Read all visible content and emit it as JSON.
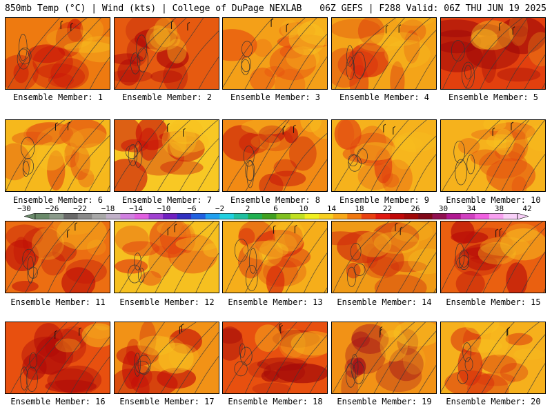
{
  "header": {
    "left": "850mb Temp (°C) | Wind (kts) | College of DuPage NEXLAB",
    "right": "06Z GEFS | F288 Valid: 06Z THU JUN 19 2025"
  },
  "panels": [
    {
      "label": "Ensemble Member: 1",
      "base": "#ee7a10",
      "hot": "#c81208"
    },
    {
      "label": "Ensemble Member: 2",
      "base": "#e65a10",
      "hot": "#b00808"
    },
    {
      "label": "Ensemble Member: 3",
      "base": "#f4a018",
      "hot": "#e64a0e"
    },
    {
      "label": "Ensemble Member: 4",
      "base": "#f4a418",
      "hot": "#d8280c"
    },
    {
      "label": "Ensemble Member: 5",
      "base": "#e2400e",
      "hot": "#a00808"
    },
    {
      "label": "Ensemble Member: 6",
      "base": "#f6b81c",
      "hot": "#e0400e"
    },
    {
      "label": "Ensemble Member: 7",
      "base": "#f8c824",
      "hot": "#c81208"
    },
    {
      "label": "Ensemble Member: 8",
      "base": "#f28a14",
      "hot": "#c41008"
    },
    {
      "label": "Ensemble Member: 9",
      "base": "#f6b21c",
      "hot": "#e03a0e"
    },
    {
      "label": "Ensemble Member: 10",
      "base": "#f6b21c",
      "hot": "#e24a0e"
    },
    {
      "label": "Ensemble Member: 11",
      "base": "#ec6e12",
      "hot": "#c01008"
    },
    {
      "label": "Ensemble Member: 12",
      "base": "#f6c020",
      "hot": "#e0380e"
    },
    {
      "label": "Ensemble Member: 13",
      "base": "#f6ae1a",
      "hot": "#d8280c"
    },
    {
      "label": "Ensemble Member: 14",
      "base": "#f09a16",
      "hot": "#d02a0c"
    },
    {
      "label": "Ensemble Member: 15",
      "base": "#ea6010",
      "hot": "#b80c08"
    },
    {
      "label": "Ensemble Member: 16",
      "base": "#e8500f",
      "hot": "#b00a08"
    },
    {
      "label": "Ensemble Member: 17",
      "base": "#f29216",
      "hot": "#c41008"
    },
    {
      "label": "Ensemble Member: 18",
      "base": "#e8500f",
      "hot": "#a40808"
    },
    {
      "label": "Ensemble Member: 19",
      "base": "#f29216",
      "hot": "#a00818"
    },
    {
      "label": "Ensemble Member: 20",
      "base": "#f6b01c",
      "hot": "#d8300c"
    }
  ],
  "colorbar": {
    "labels": [
      "−30",
      "−26",
      "−22",
      "−18",
      "−14",
      "−10",
      "−6",
      "−2",
      "2",
      "6",
      "10",
      "14",
      "18",
      "22",
      "26",
      "30",
      "34",
      "38",
      "42"
    ],
    "colors": [
      "#6a8a6a",
      "#8a9a8a",
      "#6a6a6a",
      "#8a8a8a",
      "#a8a8a8",
      "#c0b0c8",
      "#d080e0",
      "#e060e0",
      "#a040d0",
      "#7020c0",
      "#3030c0",
      "#2060e0",
      "#20a0f0",
      "#20d0e0",
      "#20c0a0",
      "#20b050",
      "#40a020",
      "#80c020",
      "#c0e020",
      "#f0f020",
      "#f8d020",
      "#f8a818",
      "#f07810",
      "#e84010",
      "#e01810",
      "#c00808",
      "#a00808",
      "#800818",
      "#901050",
      "#b01890",
      "#d040c0",
      "#f060e0",
      "#f8a0f0",
      "#f8d0f8"
    ]
  }
}
